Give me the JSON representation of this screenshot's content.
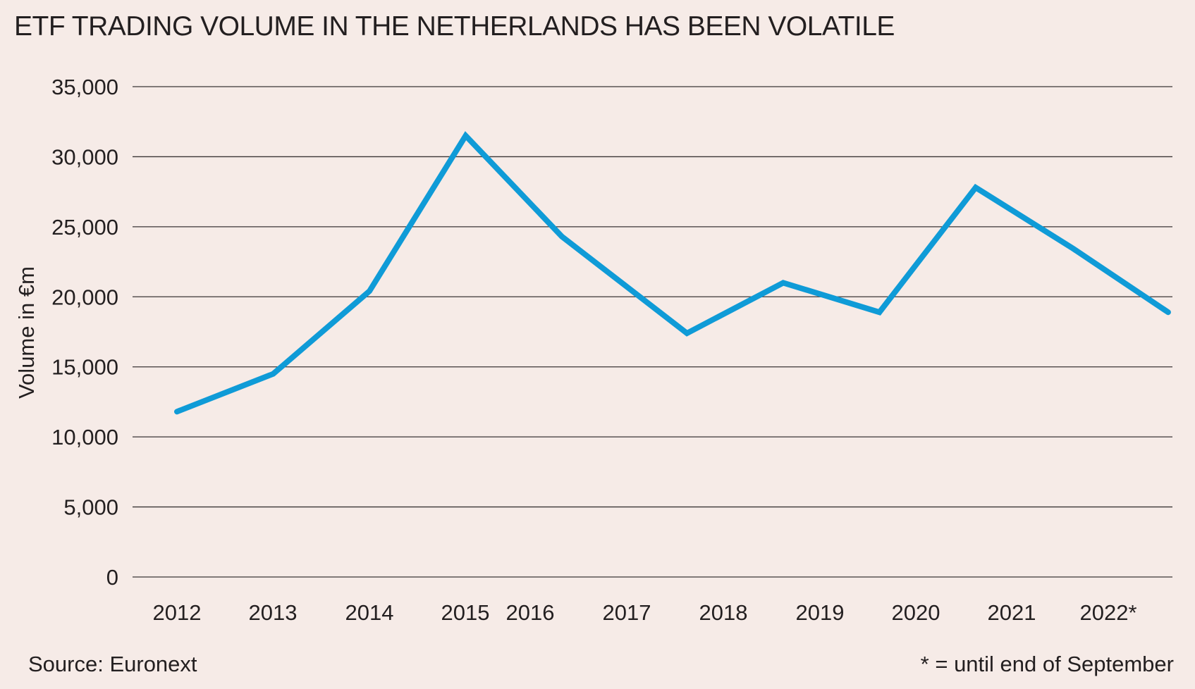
{
  "chart_data": {
    "type": "line",
    "title": "ETF TRADING VOLUME IN THE NETHERLANDS HAS BEEN VOLATILE",
    "xlabel": "",
    "ylabel": "Volume in €m",
    "ylim": [
      0,
      35000
    ],
    "yticks": [
      0,
      5000,
      10000,
      15000,
      20000,
      25000,
      30000,
      35000
    ],
    "ytick_labels": [
      "0",
      "5,000",
      "10,000",
      "15,000",
      "20,000",
      "25,000",
      "30,000",
      "35,000"
    ],
    "categories": [
      "2012",
      "2013",
      "2014",
      "2015",
      "2016",
      "2017",
      "2018",
      "2019",
      "2020",
      "2021",
      "2022*"
    ],
    "series": [
      {
        "name": "ETF trading volume",
        "color": "#0f9bd7",
        "x": [
          2012.0,
          2013.0,
          2014.0,
          2015.0,
          2016.0,
          2017.3,
          2018.3,
          2019.3,
          2020.3,
          2021.3,
          2022.3
        ],
        "values": [
          11800,
          14500,
          20400,
          31500,
          24300,
          17400,
          21000,
          18900,
          27800,
          23500,
          18900
        ]
      }
    ],
    "grid": true,
    "source": "Source: Euronext",
    "footnote": "* = until end of September"
  }
}
